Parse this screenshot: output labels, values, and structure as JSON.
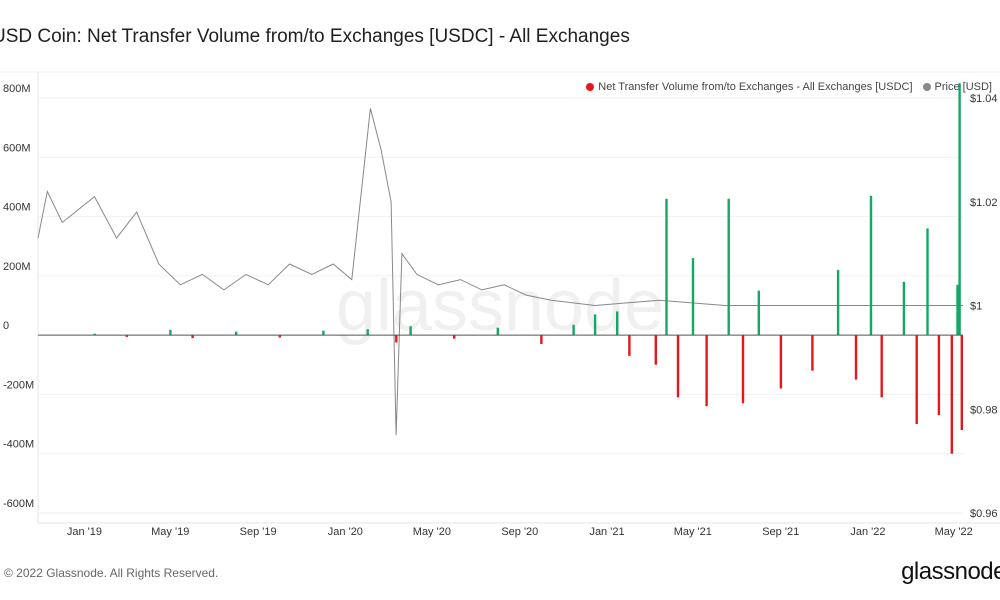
{
  "title": "USD Coin: Net Transfer Volume from/to Exchanges [USDC] - All Exchanges",
  "legend": {
    "net_label": "Net Transfer Volume from/to Exchanges - All Exchanges [USDC]",
    "price_label": "Price [USD]",
    "net_color": "#e5171d",
    "price_color": "#888888"
  },
  "footer": {
    "copyright": "© 2022 Glassnode. All Rights Reserved.",
    "brand": "glassnode"
  },
  "watermark": "glassnode",
  "chart_data": {
    "type": "bar",
    "left_axis": {
      "ticks": [
        800,
        600,
        400,
        200,
        0,
        -200,
        -400,
        -600
      ],
      "tick_labels": [
        "800M",
        "600M",
        "400M",
        "200M",
        "0",
        "-200M",
        "-400M",
        "-600M"
      ],
      "range": [
        -600,
        800
      ],
      "unit": "M USDC"
    },
    "right_axis": {
      "ticks": [
        1.04,
        1.02,
        1.0,
        0.98,
        0.96
      ],
      "tick_labels": [
        "$1.04",
        "$1.02",
        "$1",
        "$0.98",
        "$0.96"
      ],
      "range": [
        0.96,
        1.04
      ]
    },
    "x_axis": {
      "tick_labels": [
        "Jan '19",
        "May '19",
        "Sep '19",
        "Jan '20",
        "May '20",
        "Sep '20",
        "Jan '21",
        "May '21",
        "Sep '21",
        "Jan '22",
        "May '22"
      ],
      "tick_dates": [
        "2019-01-01",
        "2019-05-01",
        "2019-09-01",
        "2020-01-01",
        "2020-05-01",
        "2020-09-01",
        "2021-01-01",
        "2021-05-01",
        "2021-09-01",
        "2022-01-01",
        "2022-05-01"
      ],
      "range": [
        "2018-10-28",
        "2022-05-14"
      ]
    },
    "series": [
      {
        "name": "Net Transfer Volume from/to Exchanges - All Exchanges [USDC]",
        "color_positive": "#16a766",
        "color_negative": "#e5171d",
        "points": [
          [
            "2019-01-15",
            5
          ],
          [
            "2019-03-01",
            -6
          ],
          [
            "2019-05-01",
            18
          ],
          [
            "2019-06-01",
            -10
          ],
          [
            "2019-08-01",
            12
          ],
          [
            "2019-10-01",
            -8
          ],
          [
            "2019-12-01",
            15
          ],
          [
            "2020-02-01",
            20
          ],
          [
            "2020-03-12",
            -25
          ],
          [
            "2020-04-01",
            30
          ],
          [
            "2020-06-01",
            -12
          ],
          [
            "2020-08-01",
            25
          ],
          [
            "2020-10-01",
            -30
          ],
          [
            "2020-11-15",
            35
          ],
          [
            "2020-12-15",
            70
          ],
          [
            "2021-01-15",
            80
          ],
          [
            "2021-02-01",
            -70
          ],
          [
            "2021-03-10",
            -100
          ],
          [
            "2021-03-25",
            460
          ],
          [
            "2021-04-10",
            -210
          ],
          [
            "2021-05-01",
            260
          ],
          [
            "2021-05-20",
            -240
          ],
          [
            "2021-06-20",
            460
          ],
          [
            "2021-07-10",
            -230
          ],
          [
            "2021-08-01",
            150
          ],
          [
            "2021-09-01",
            -180
          ],
          [
            "2021-10-15",
            -120
          ],
          [
            "2021-11-20",
            220
          ],
          [
            "2021-12-15",
            -150
          ],
          [
            "2022-01-05",
            470
          ],
          [
            "2022-01-20",
            -210
          ],
          [
            "2022-02-20",
            180
          ],
          [
            "2022-03-10",
            -300
          ],
          [
            "2022-03-25",
            360
          ],
          [
            "2022-04-10",
            -270
          ],
          [
            "2022-04-28",
            -400
          ],
          [
            "2022-05-06",
            170
          ],
          [
            "2022-05-09",
            850
          ],
          [
            "2022-05-12",
            -320
          ]
        ]
      },
      {
        "name": "Price [USD]",
        "color": "#888888",
        "points": [
          [
            "2018-10-28",
            1.013
          ],
          [
            "2018-11-10",
            1.022
          ],
          [
            "2018-12-01",
            1.016
          ],
          [
            "2019-01-15",
            1.021
          ],
          [
            "2019-02-15",
            1.013
          ],
          [
            "2019-03-15",
            1.018
          ],
          [
            "2019-04-15",
            1.008
          ],
          [
            "2019-05-15",
            1.004
          ],
          [
            "2019-06-15",
            1.006
          ],
          [
            "2019-07-15",
            1.003
          ],
          [
            "2019-08-15",
            1.006
          ],
          [
            "2019-09-15",
            1.004
          ],
          [
            "2019-10-15",
            1.008
          ],
          [
            "2019-11-15",
            1.006
          ],
          [
            "2019-12-15",
            1.008
          ],
          [
            "2020-01-10",
            1.005
          ],
          [
            "2020-02-05",
            1.038
          ],
          [
            "2020-02-20",
            1.03
          ],
          [
            "2020-03-05",
            1.02
          ],
          [
            "2020-03-12",
            0.975
          ],
          [
            "2020-03-20",
            1.01
          ],
          [
            "2020-04-10",
            1.006
          ],
          [
            "2020-05-10",
            1.004
          ],
          [
            "2020-06-10",
            1.005
          ],
          [
            "2020-07-10",
            1.003
          ],
          [
            "2020-08-10",
            1.004
          ],
          [
            "2020-09-10",
            1.002
          ],
          [
            "2020-10-15",
            1.001
          ],
          [
            "2020-12-15",
            1.0
          ],
          [
            "2021-03-15",
            1.001
          ],
          [
            "2021-06-15",
            1.0
          ],
          [
            "2021-09-15",
            1.0
          ],
          [
            "2021-12-15",
            1.0
          ],
          [
            "2022-03-15",
            1.0
          ],
          [
            "2022-05-14",
            1.0
          ]
        ]
      }
    ]
  }
}
